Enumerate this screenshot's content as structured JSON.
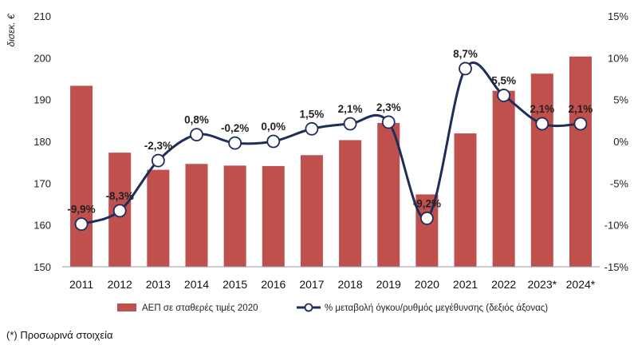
{
  "chart_data": {
    "type": "bar",
    "categories": [
      "2011",
      "2012",
      "2013",
      "2014",
      "2015",
      "2016",
      "2017",
      "2018",
      "2019",
      "2020",
      "2021",
      "2022",
      "2023*",
      "2024*"
    ],
    "ylabel": "δισεκ. €",
    "ylim": [
      150,
      210
    ],
    "y2lim": [
      -15,
      15
    ],
    "y_ticks": [
      "150",
      "160",
      "170",
      "180",
      "190",
      "200",
      "210"
    ],
    "y2_ticks": [
      "-15%",
      "-10%",
      "-5%",
      "0%",
      "5%",
      "10%",
      "15%"
    ],
    "series": [
      {
        "name": "ΑΕΠ σε σταθερές τιμές 2020",
        "type": "bar",
        "axis": "left",
        "color": "#c0504d",
        "values": [
          193.3,
          177.3,
          173.2,
          174.6,
          174.2,
          174.1,
          176.7,
          180.3,
          184.4,
          167.3,
          181.9,
          192.1,
          196.2,
          200.3
        ]
      },
      {
        "name": "% μεταβολή όγκου/ρυθμός μεγέθυνσης (δεξιός άξονας)",
        "type": "line",
        "axis": "right",
        "color": "#1f2d5a",
        "values": [
          -9.9,
          -8.3,
          -2.3,
          0.8,
          -0.2,
          0.0,
          1.5,
          2.1,
          2.3,
          -9.2,
          8.7,
          5.5,
          2.1,
          2.1
        ],
        "labels": [
          "-9,9%",
          "-8,3%",
          "-2,3%",
          "0,8%",
          "-0,2%",
          "0,0%",
          "1,5%",
          "2,1%",
          "2,3%",
          "-9,2%",
          "8,7%",
          "5,5%",
          "2,1%",
          "2,1%"
        ]
      }
    ],
    "legend_position": "bottom",
    "grid": false
  },
  "footnote": "(*) Προσωρινά στοιχεία"
}
